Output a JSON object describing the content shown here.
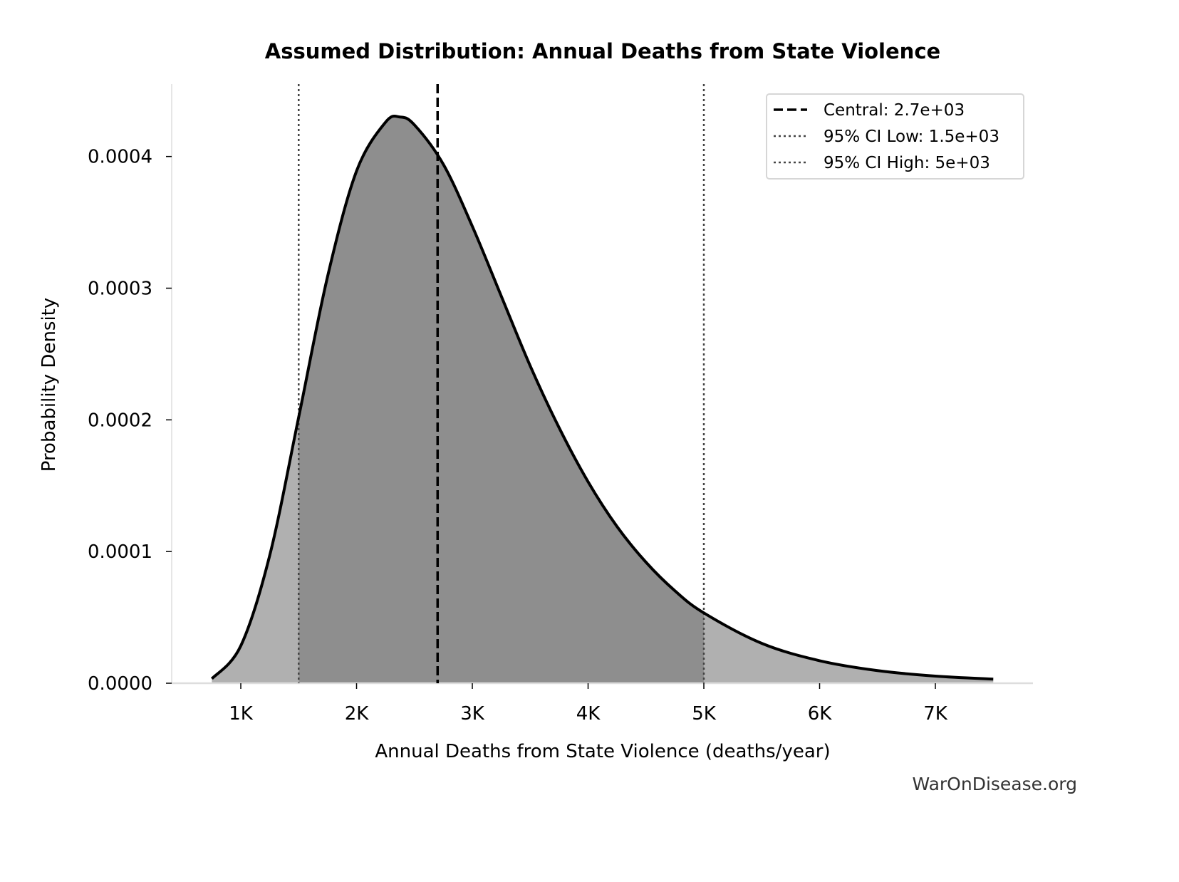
{
  "chart_data": {
    "type": "area",
    "title": "Assumed Distribution: Annual Deaths from State Violence",
    "xlabel": "Annual Deaths from State Violence (deaths/year)",
    "ylabel": "Probability Density",
    "xlim": [
      403,
      7843
    ],
    "ylim": [
      0,
      0.000455
    ],
    "x_ticks": [
      {
        "value": 1000,
        "label": "1K"
      },
      {
        "value": 2000,
        "label": "2K"
      },
      {
        "value": 3000,
        "label": "3K"
      },
      {
        "value": 4000,
        "label": "4K"
      },
      {
        "value": 5000,
        "label": "5K"
      },
      {
        "value": 6000,
        "label": "6K"
      },
      {
        "value": 7000,
        "label": "7K"
      }
    ],
    "y_ticks": [
      {
        "value": 0,
        "label": "0.0000"
      },
      {
        "value": 0.0001,
        "label": "0.0001"
      },
      {
        "value": 0.0002,
        "label": "0.0002"
      },
      {
        "value": 0.0003,
        "label": "0.0003"
      },
      {
        "value": 0.0004,
        "label": "0.0004"
      }
    ],
    "grid": false,
    "series": [
      {
        "x": [
          750,
          1000,
          1250,
          1500,
          1750,
          2000,
          2250,
          2375,
          2500,
          2750,
          3000,
          3250,
          3500,
          3750,
          4000,
          4250,
          4500,
          4750,
          5000,
          5500,
          6000,
          6500,
          7000,
          7500
        ],
        "y": [
          3.4e-06,
          2.84e-05,
          9.71e-05,
          0.000202,
          0.000309,
          0.000389,
          0.000426,
          0.00043,
          0.000424,
          0.000394,
          0.000347,
          0.000294,
          0.000241,
          0.000194,
          0.000153,
          0.000119,
          9.19e-05,
          7.02e-05,
          5.34e-05,
          3.03e-05,
          1.71e-05,
          9.6e-06,
          5.4e-06,
          3.1e-06
        ]
      }
    ],
    "shaded_interval": [
      1500,
      5000
    ],
    "reference_lines": [
      {
        "value": 2700,
        "style": "dashed",
        "label": "Central: 2.7e+03",
        "color": "#000000"
      },
      {
        "value": 1500,
        "style": "dotted",
        "label": "95% CI Low: 1.5e+03",
        "color": "#444444"
      },
      {
        "value": 5000,
        "style": "dotted",
        "label": "95% CI High: 5e+03",
        "color": "#444444"
      }
    ],
    "legend_position": "top-right",
    "colors": {
      "curve": "#000000",
      "fill_outer": "#b0b0b0",
      "fill_inner": "#8e8e8e"
    }
  },
  "watermark": "WarOnDisease.org"
}
